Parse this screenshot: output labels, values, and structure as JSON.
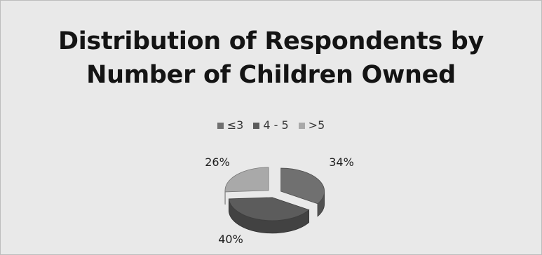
{
  "chart_data": {
    "type": "pie",
    "title_line1": "Distribution of Respondents by",
    "title_line2": "Number of Children Owned",
    "categories": [
      "≤3",
      "4 - 5",
      ">5"
    ],
    "values": [
      34,
      40,
      26
    ],
    "value_labels": [
      "34%",
      "40%",
      "26%"
    ],
    "colors": [
      "#707070",
      "#5c5c5c",
      "#a9a9a9"
    ],
    "style": "3d-exploded",
    "legend_position": "top"
  }
}
